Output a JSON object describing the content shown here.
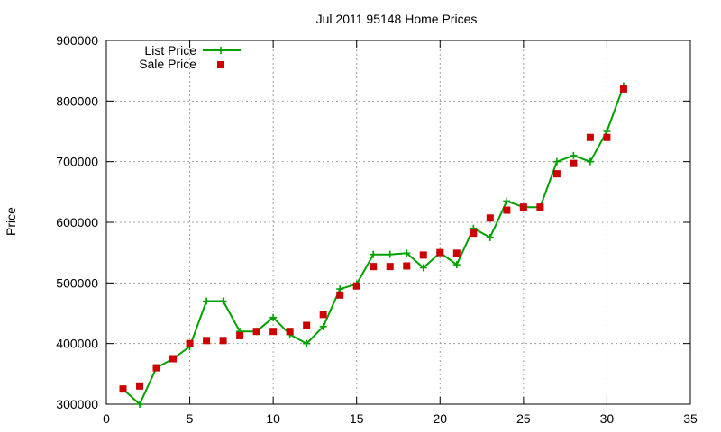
{
  "chart_data": {
    "type": "line",
    "title": "Jul 2011 95148 Home Prices",
    "xlabel": "",
    "ylabel": "Price",
    "xlim": [
      0,
      35
    ],
    "ylim": [
      300000,
      900000
    ],
    "xticks": [
      "0",
      "5",
      "10",
      "15",
      "20",
      "25",
      "30",
      "35"
    ],
    "yticks": [
      "300000",
      "400000",
      "500000",
      "600000",
      "700000",
      "800000",
      "900000"
    ],
    "grid": true,
    "legend_position": "top-left",
    "series": [
      {
        "name": "List Price",
        "style": "line-with-plus-markers",
        "color": "#00a000",
        "points": [
          [
            1,
            325000
          ],
          [
            2,
            300000
          ],
          [
            3,
            360000
          ],
          [
            4,
            375000
          ],
          [
            5,
            395000
          ],
          [
            6,
            470000
          ],
          [
            7,
            470000
          ],
          [
            8,
            420000
          ],
          [
            9,
            420000
          ],
          [
            10,
            443000
          ],
          [
            11,
            415000
          ],
          [
            12,
            400000
          ],
          [
            13,
            428000
          ],
          [
            14,
            490000
          ],
          [
            15,
            498000
          ],
          [
            16,
            547000
          ],
          [
            17,
            547000
          ],
          [
            18,
            549000
          ],
          [
            19,
            525000
          ],
          [
            20,
            550000
          ],
          [
            21,
            530000
          ],
          [
            22,
            590000
          ],
          [
            23,
            575000
          ],
          [
            24,
            635000
          ],
          [
            25,
            625000
          ],
          [
            26,
            625000
          ],
          [
            27,
            700000
          ],
          [
            28,
            710000
          ],
          [
            29,
            700000
          ],
          [
            30,
            750000
          ],
          [
            31,
            825000
          ]
        ]
      },
      {
        "name": "Sale Price",
        "style": "square-markers",
        "color": "#cc0000",
        "points": [
          [
            1,
            325000
          ],
          [
            2,
            330000
          ],
          [
            3,
            360000
          ],
          [
            4,
            375000
          ],
          [
            5,
            400000
          ],
          [
            6,
            405000
          ],
          [
            7,
            405000
          ],
          [
            8,
            413000
          ],
          [
            9,
            420000
          ],
          [
            10,
            420000
          ],
          [
            11,
            420000
          ],
          [
            12,
            430000
          ],
          [
            13,
            448000
          ],
          [
            14,
            480000
          ],
          [
            15,
            495000
          ],
          [
            16,
            527000
          ],
          [
            17,
            527000
          ],
          [
            18,
            528000
          ],
          [
            19,
            546000
          ],
          [
            20,
            550000
          ],
          [
            21,
            549000
          ],
          [
            22,
            582000
          ],
          [
            23,
            607000
          ],
          [
            24,
            620000
          ],
          [
            25,
            625000
          ],
          [
            26,
            625000
          ],
          [
            27,
            680000
          ],
          [
            28,
            697000
          ],
          [
            29,
            740000
          ],
          [
            30,
            740000
          ],
          [
            31,
            820000
          ]
        ]
      }
    ]
  }
}
